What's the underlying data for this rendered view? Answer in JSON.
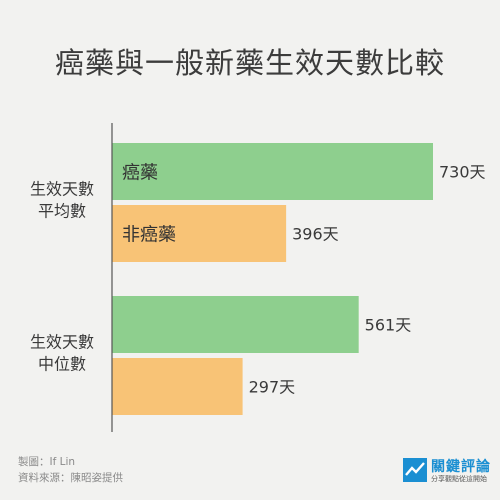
{
  "title": "癌藥與一般新藥生效天數比較",
  "credits": {
    "maker": "製圖：If Lin",
    "source": "資料來源：陳昭姿提供"
  },
  "logo": {
    "name": "關鍵評論",
    "tagline": "分享觀點從這開始"
  },
  "colors": {
    "background": "#f2f2f0",
    "cancer_drug": "#8ecf8e",
    "non_cancer_drug": "#f8c376",
    "axis": "#555555",
    "brand": "#1b8fd2"
  },
  "chart_data": {
    "type": "bar",
    "orientation": "horizontal",
    "title": "癌藥與一般新藥生效天數比較",
    "categories": [
      "生效天數\n平均數",
      "生效天數\n中位數"
    ],
    "series": [
      {
        "name": "癌藥",
        "values": [
          730,
          561
        ],
        "color": "#8ecf8e"
      },
      {
        "name": "非癌藥",
        "values": [
          396,
          297
        ],
        "color": "#f8c376"
      }
    ],
    "value_labels": [
      [
        "730天",
        "561天"
      ],
      [
        "396天",
        "297天"
      ]
    ],
    "value_unit": "天",
    "xlim": [
      0,
      800
    ],
    "grid": false,
    "legend": "labels inside bars of first category"
  }
}
